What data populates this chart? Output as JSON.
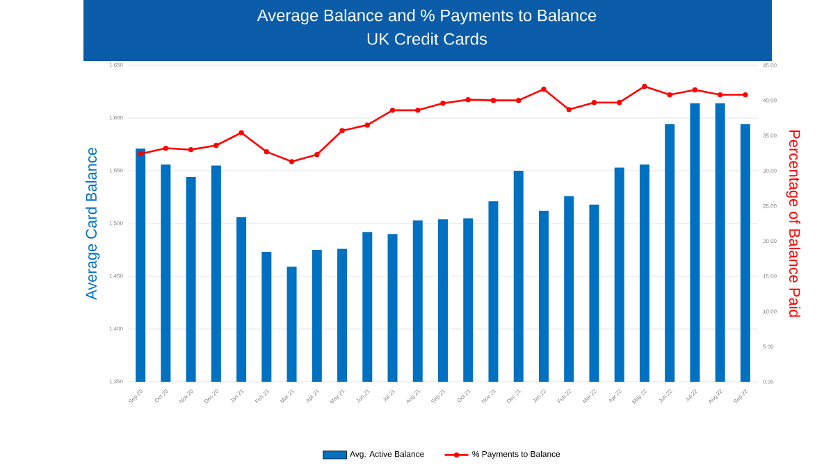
{
  "chart_data": {
    "type": "bar",
    "title": "Average Balance and % Payments to Balance",
    "subtitle": "UK Credit Cards",
    "ylabel": "Average Card Balance",
    "y2label": "Percentage of Balance Paid",
    "categories": [
      "Sep 20",
      "Oct 20",
      "Nov 20",
      "Dec 20",
      "Jan 21",
      "Feb 21",
      "Mar 21",
      "Apr 21",
      "May 21",
      "Jun 21",
      "Jul 21",
      "Aug 21",
      "Sep 21",
      "Oct 21",
      "Nov 21",
      "Dec 21",
      "Jan 22",
      "Feb 22",
      "Mar 22",
      "Apr 22",
      "May 22",
      "Jun 22",
      "Jul 22",
      "Aug 22",
      "Sep 22"
    ],
    "series": [
      {
        "name": "Avg. Active Balance",
        "color": "#0070c0",
        "values": [
          1571,
          1556,
          1544,
          1555,
          1506,
          1473,
          1459,
          1475,
          1476,
          1492,
          1490,
          1503,
          1504,
          1505,
          1521,
          1550,
          1512,
          1526,
          1518,
          1553,
          1556,
          1594,
          1614,
          1614,
          1594
        ]
      },
      {
        "name": "% Payments to Balance",
        "type": "line",
        "axis": "y2",
        "color": "#ff0000",
        "marker": "circle",
        "values": [
          32.4,
          33.2,
          33.0,
          33.6,
          35.4,
          32.7,
          31.3,
          32.3,
          35.7,
          36.5,
          38.6,
          38.6,
          39.6,
          40.1,
          40.0,
          40.0,
          41.6,
          38.7,
          39.7,
          39.7,
          42.0,
          40.8,
          41.5,
          40.8,
          40.8
        ]
      }
    ],
    "ylim": [
      1350,
      1650
    ],
    "yticks": [
      {
        "value": 1350,
        "label": "1,350"
      },
      {
        "value": 1400,
        "label": "1,400"
      },
      {
        "value": 1450,
        "label": "1,450"
      },
      {
        "value": 1500,
        "label": "1,500"
      },
      {
        "value": 1550,
        "label": "1,550"
      },
      {
        "value": 1600,
        "label": "1,600"
      },
      {
        "value": 1650,
        "label": "1,650"
      }
    ],
    "y2lim": [
      0,
      45
    ],
    "y2ticks": [
      {
        "value": 0,
        "label": "0.00"
      },
      {
        "value": 5,
        "label": "5.00"
      },
      {
        "value": 10,
        "label": "10.00"
      },
      {
        "value": 15,
        "label": "15.00"
      },
      {
        "value": 20,
        "label": "20.00"
      },
      {
        "value": 25,
        "label": "25.00"
      },
      {
        "value": 30,
        "label": "30.00"
      },
      {
        "value": 35,
        "label": "35.00"
      },
      {
        "value": 40,
        "label": "40.00"
      },
      {
        "value": 45,
        "label": "45.00"
      }
    ],
    "grid": "y",
    "legend": "bottom"
  }
}
